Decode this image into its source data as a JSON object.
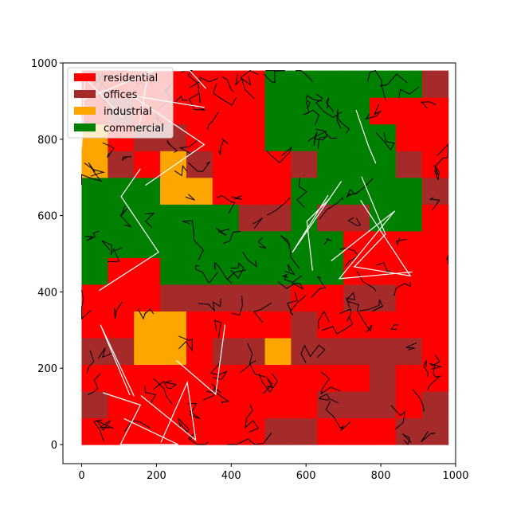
{
  "chart_data": {
    "type": "heatmap",
    "title": "",
    "xlabel": "",
    "ylabel": "",
    "xlim": [
      -50,
      1000
    ],
    "ylim": [
      -50,
      1000
    ],
    "grid": false,
    "legend_placement": "top-left",
    "xticks": [
      0,
      200,
      400,
      600,
      800,
      1000
    ],
    "yticks": [
      0,
      200,
      400,
      600,
      800,
      1000
    ],
    "categories": [
      {
        "name": "residential",
        "color": "#ff0000"
      },
      {
        "name": "offices",
        "color": "#a52a2a"
      },
      {
        "name": "industrial",
        "color": "#ffa500"
      },
      {
        "name": "commercial",
        "color": "#008000"
      }
    ],
    "cell_size": 70,
    "grid_shape": [
      14,
      14
    ],
    "legend": [
      "residential",
      "offices",
      "industrial",
      "commercial"
    ],
    "cells": [
      [
        "residential",
        "residential",
        "residential",
        "residential",
        "residential",
        "residential",
        "residential",
        "offices",
        "offices",
        "residential",
        "residential",
        "residential",
        "offices",
        "offices"
      ],
      [
        "offices",
        "residential",
        "residential",
        "residential",
        "residential",
        "residential",
        "residential",
        "residential",
        "residential",
        "offices",
        "offices",
        "offices",
        "residential",
        "offices"
      ],
      [
        "residential",
        "residential",
        "residential",
        "residential",
        "residential",
        "residential",
        "residential",
        "residential",
        "residential",
        "residential",
        "residential",
        "offices",
        "residential",
        "residential"
      ],
      [
        "offices",
        "offices",
        "industrial",
        "industrial",
        "residential",
        "offices",
        "offices",
        "industrial",
        "offices",
        "offices",
        "offices",
        "offices",
        "offices",
        "residential"
      ],
      [
        "residential",
        "residential",
        "industrial",
        "industrial",
        "residential",
        "residential",
        "residential",
        "residential",
        "offices",
        "residential",
        "residential",
        "residential",
        "residential",
        "residential"
      ],
      [
        "residential",
        "residential",
        "residential",
        "offices",
        "offices",
        "offices",
        "offices",
        "offices",
        "residential",
        "residential",
        "offices",
        "offices",
        "residential",
        "residential"
      ],
      [
        "commercial",
        "residential",
        "residential",
        "commercial",
        "commercial",
        "commercial",
        "commercial",
        "commercial",
        "commercial",
        "commercial",
        "residential",
        "residential",
        "residential",
        "residential"
      ],
      [
        "commercial",
        "commercial",
        "commercial",
        "commercial",
        "commercial",
        "commercial",
        "commercial",
        "commercial",
        "commercial",
        "commercial",
        "residential",
        "residential",
        "residential",
        "residential"
      ],
      [
        "commercial",
        "commercial",
        "commercial",
        "commercial",
        "commercial",
        "commercial",
        "offices",
        "offices",
        "commercial",
        "offices",
        "offices",
        "commercial",
        "commercial",
        "residential"
      ],
      [
        "commercial",
        "commercial",
        "commercial",
        "industrial",
        "industrial",
        "residential",
        "residential",
        "residential",
        "commercial",
        "commercial",
        "commercial",
        "commercial",
        "commercial",
        "offices"
      ],
      [
        "industrial",
        "offices",
        "residential",
        "industrial",
        "offices",
        "residential",
        "residential",
        "residential",
        "offices",
        "commercial",
        "commercial",
        "commercial",
        "offices",
        "residential"
      ],
      [
        "industrial",
        "residential",
        "offices",
        "offices",
        "residential",
        "residential",
        "residential",
        "commercial",
        "commercial",
        "commercial",
        "commercial",
        "commercial",
        "residential",
        "residential"
      ],
      [
        "residential",
        "offices",
        "residential",
        "residential",
        "residential",
        "residential",
        "residential",
        "commercial",
        "commercial",
        "commercial",
        "commercial",
        "residential",
        "residential",
        "residential"
      ],
      [
        "residential",
        "residential",
        "residential",
        "residential",
        "residential",
        "residential",
        "residential",
        "commercial",
        "commercial",
        "commercial",
        "commercial",
        "commercial",
        "commercial",
        "offices"
      ]
    ]
  }
}
